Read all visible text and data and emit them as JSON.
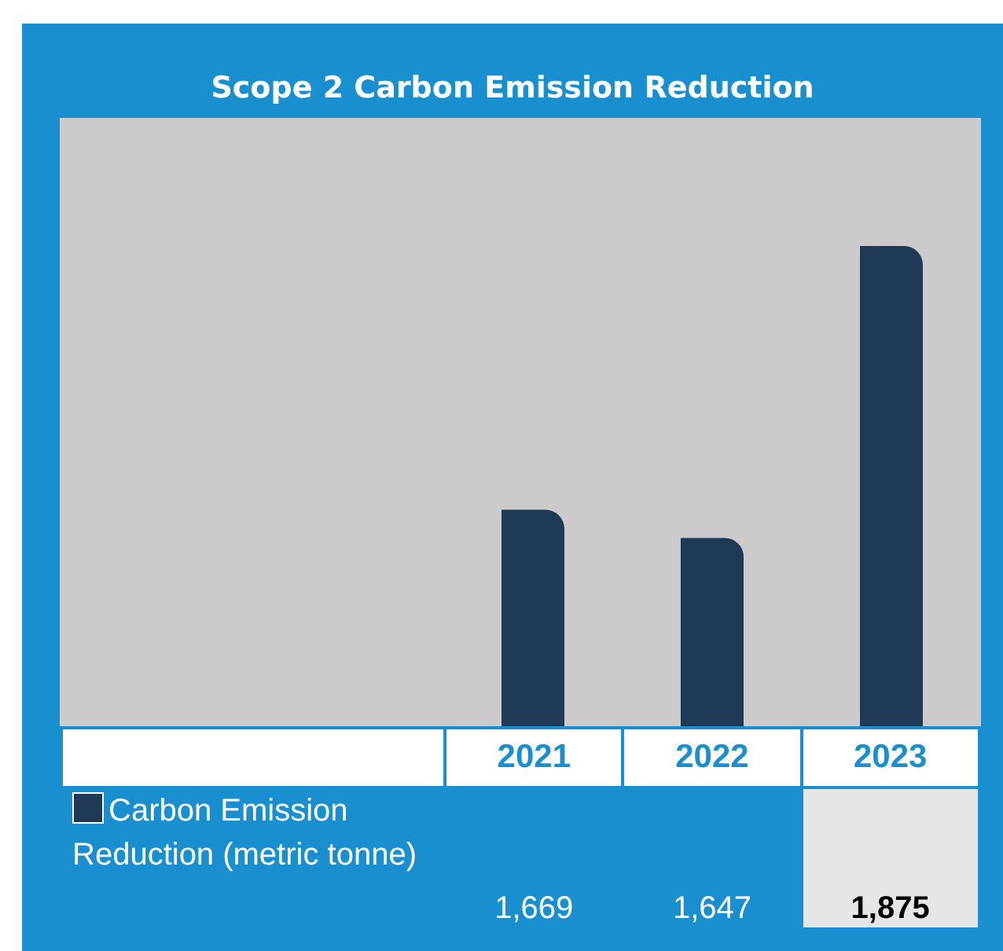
{
  "chart_data": {
    "type": "bar",
    "title": "Scope 2 Carbon Emission Reduction",
    "categories": [
      "2021",
      "2022",
      "2023"
    ],
    "series": [
      {
        "name": "Carbon Emission Reduction (metric tonne)",
        "color": "#1f3a56",
        "values": [
          1669,
          1647,
          1875
        ],
        "value_labels": [
          "1,669",
          "1,647",
          "1,875"
        ]
      }
    ],
    "ylim": [
      1500,
      1975
    ],
    "tick_labels": "x",
    "grid": false,
    "legend": "bottom left"
  }
}
